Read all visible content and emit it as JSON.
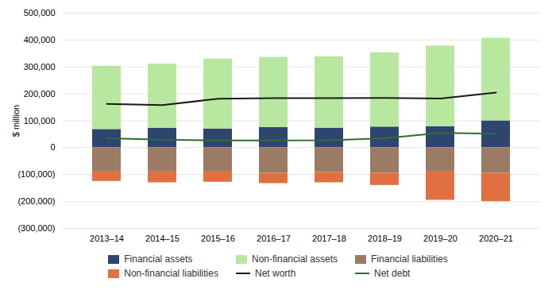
{
  "chart_data": {
    "type": "bar",
    "stacked": true,
    "categories": [
      "2013–14",
      "2014–15",
      "2015–16",
      "2016–17",
      "2017–18",
      "2018–19",
      "2019–20",
      "2020–21"
    ],
    "series": [
      {
        "name": "Financial assets",
        "type": "bar",
        "color": "#2e4570",
        "values": [
          68000,
          72000,
          70000,
          75000,
          73000,
          77000,
          78000,
          100000
        ]
      },
      {
        "name": "Non-financial assets",
        "type": "bar",
        "color": "#b8e8a0",
        "values": [
          235000,
          239000,
          260000,
          261000,
          265000,
          276000,
          300000,
          307000
        ]
      },
      {
        "name": "Financial liabilities",
        "type": "bar",
        "color": "#9c7b65",
        "values": [
          -90000,
          -90000,
          -90000,
          -95000,
          -92000,
          -95000,
          -90000,
          -95000
        ]
      },
      {
        "name": "Non-financial liabilities",
        "type": "bar",
        "color": "#e07040",
        "values": [
          -35000,
          -40000,
          -38000,
          -38000,
          -38000,
          -45000,
          -105000,
          -105000
        ]
      },
      {
        "name": "Net worth",
        "type": "line",
        "color": "#1a1a1a",
        "values": [
          163000,
          158000,
          182000,
          184000,
          184000,
          185000,
          183000,
          205000
        ]
      },
      {
        "name": "Net debt",
        "type": "line",
        "color": "#2d6e2d",
        "values": [
          35000,
          30000,
          27000,
          27000,
          28000,
          35000,
          55000,
          52000
        ]
      }
    ],
    "ylabel": "$ million",
    "ylim": [
      -300000,
      500000
    ],
    "yticks": [
      {
        "value": -300000,
        "label": "(300,000)"
      },
      {
        "value": -200000,
        "label": "(200,000)"
      },
      {
        "value": -100000,
        "label": "(100,000)"
      },
      0,
      {
        "value": 100000,
        "label": "100,000"
      },
      {
        "value": 200000,
        "label": "200,000"
      },
      {
        "value": 300000,
        "label": "300,000"
      },
      {
        "value": 400000,
        "label": "400,000"
      },
      {
        "value": 500000,
        "label": "500,000"
      }
    ],
    "grid": true,
    "legend": "bottom"
  }
}
